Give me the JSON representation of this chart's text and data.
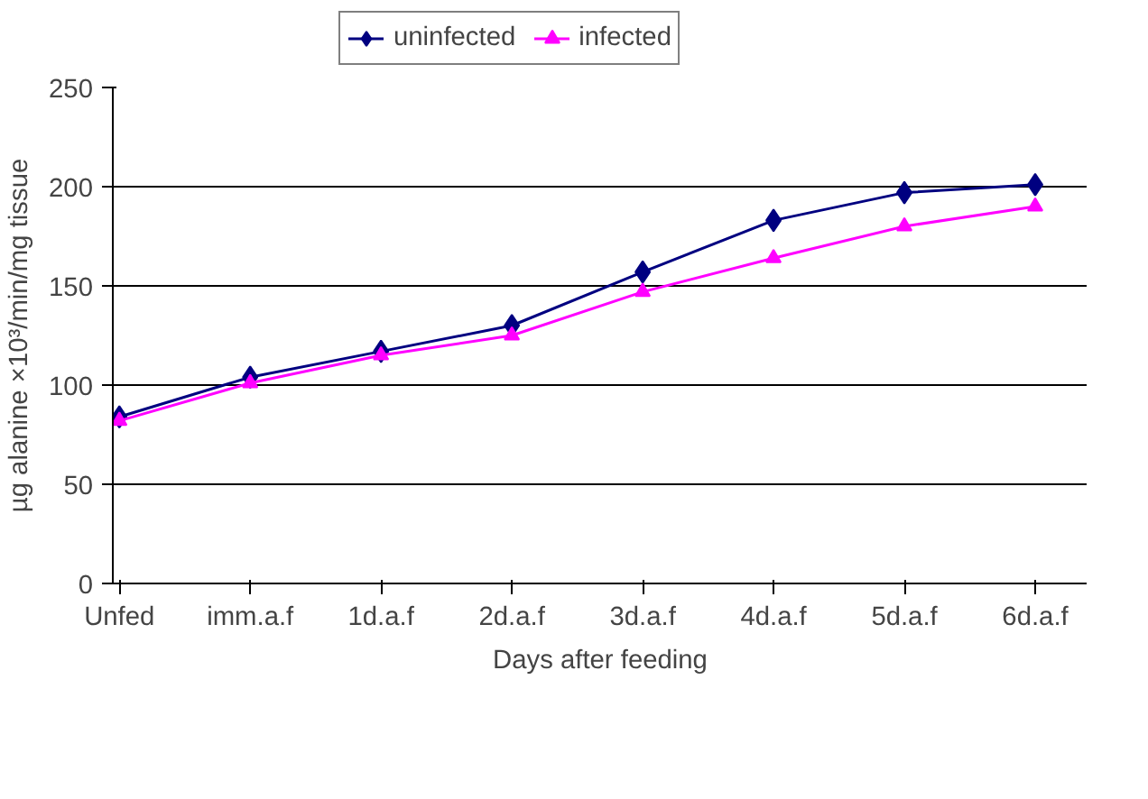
{
  "chart_data": {
    "type": "line",
    "xlabel": "Days after feeding",
    "ylabel": "µg alanine ×10³/min/mg tissue",
    "categories": [
      "Unfed",
      "imm.a.f",
      "1d.a.f",
      "2d.a.f",
      "3d.a.f",
      "4d.a.f",
      "5d.a.f",
      "6d.a.f"
    ],
    "series": [
      {
        "name": "uninfected",
        "color": "#000080",
        "marker": "diamond",
        "values": [
          84,
          104,
          117,
          130,
          157,
          183,
          197,
          201
        ]
      },
      {
        "name": "infected",
        "color": "#ff00ff",
        "marker": "triangle",
        "values": [
          82,
          101,
          115,
          125,
          147,
          164,
          180,
          190
        ]
      }
    ],
    "ylim": [
      0,
      250
    ],
    "yticks": [
      0,
      50,
      100,
      150,
      200,
      250
    ],
    "grid": "y",
    "legend": "top",
    "line_style": "solid"
  }
}
